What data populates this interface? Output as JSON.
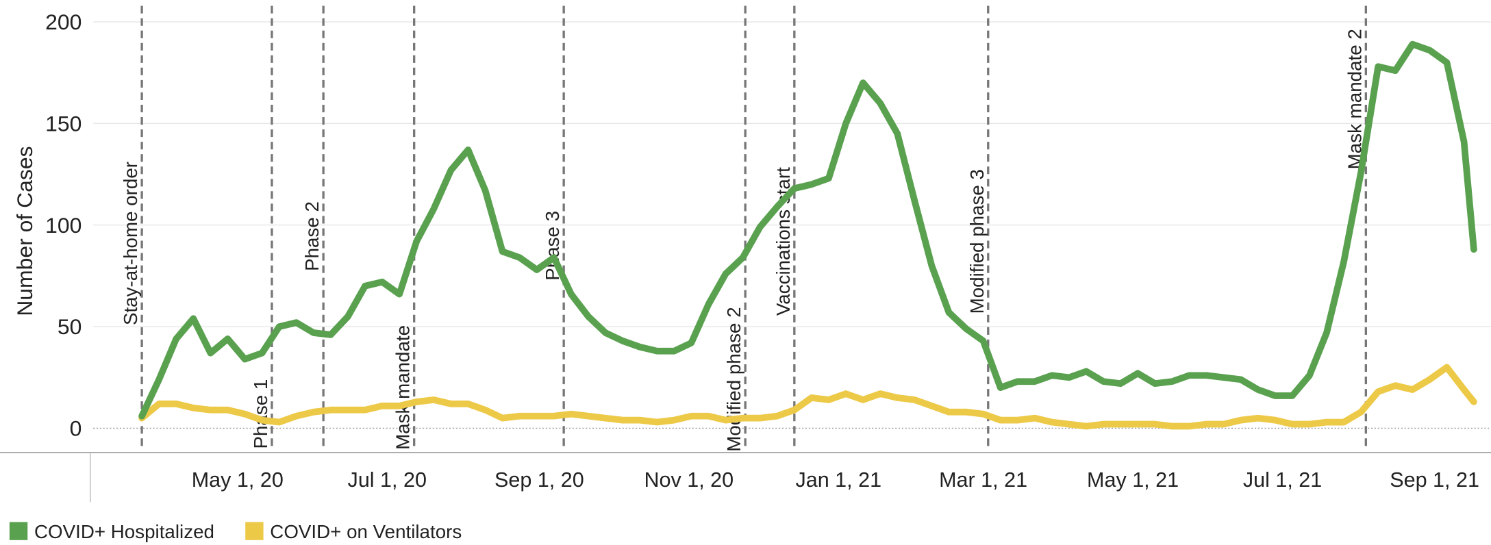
{
  "chart_data": {
    "type": "line",
    "y_label": "Number of Cases",
    "x": [
      "2020-03-23",
      "2020-03-30",
      "2020-04-06",
      "2020-04-13",
      "2020-04-20",
      "2020-04-27",
      "2020-05-04",
      "2020-05-11",
      "2020-05-18",
      "2020-05-25",
      "2020-06-01",
      "2020-06-08",
      "2020-06-15",
      "2020-06-22",
      "2020-06-29",
      "2020-07-06",
      "2020-07-13",
      "2020-07-20",
      "2020-07-27",
      "2020-08-03",
      "2020-08-10",
      "2020-08-17",
      "2020-08-24",
      "2020-08-31",
      "2020-09-07",
      "2020-09-14",
      "2020-09-21",
      "2020-09-28",
      "2020-10-05",
      "2020-10-12",
      "2020-10-19",
      "2020-10-26",
      "2020-11-02",
      "2020-11-09",
      "2020-11-16",
      "2020-11-23",
      "2020-11-30",
      "2020-12-07",
      "2020-12-14",
      "2020-12-21",
      "2020-12-28",
      "2021-01-04",
      "2021-01-11",
      "2021-01-18",
      "2021-01-25",
      "2021-02-01",
      "2021-02-08",
      "2021-02-15",
      "2021-02-22",
      "2021-03-01",
      "2021-03-08",
      "2021-03-15",
      "2021-03-22",
      "2021-03-29",
      "2021-04-05",
      "2021-04-12",
      "2021-04-19",
      "2021-04-26",
      "2021-05-03",
      "2021-05-10",
      "2021-05-17",
      "2021-05-24",
      "2021-05-31",
      "2021-06-07",
      "2021-06-14",
      "2021-06-21",
      "2021-06-28",
      "2021-07-05",
      "2021-07-12",
      "2021-07-19",
      "2021-07-26",
      "2021-08-02",
      "2021-08-09",
      "2021-08-16",
      "2021-08-23",
      "2021-08-30",
      "2021-09-06",
      "2021-09-13",
      "2021-09-17"
    ],
    "series": [
      {
        "name": "COVID+ Hospitalized",
        "color": "#59a14f",
        "values": [
          6,
          24,
          44,
          54,
          37,
          44,
          34,
          37,
          50,
          52,
          47,
          46,
          55,
          70,
          72,
          66,
          92,
          108,
          127,
          137,
          117,
          87,
          84,
          78,
          84,
          66,
          55,
          47,
          43,
          40,
          38,
          38,
          42,
          61,
          76,
          84,
          99,
          109,
          118,
          120,
          123,
          150,
          170,
          160,
          145,
          112,
          80,
          57,
          49,
          43,
          20,
          23,
          23,
          26,
          25,
          28,
          23,
          22,
          27,
          22,
          23,
          26,
          26,
          25,
          24,
          19,
          16,
          16,
          26,
          47,
          82,
          126,
          178,
          176,
          189,
          186,
          180,
          141,
          88
        ]
      },
      {
        "name": "COVID+ on Ventilators",
        "color": "#edc948",
        "values": [
          5,
          12,
          12,
          10,
          9,
          9,
          7,
          4,
          3,
          6,
          8,
          9,
          9,
          9,
          11,
          11,
          13,
          14,
          12,
          12,
          9,
          5,
          6,
          6,
          6,
          7,
          6,
          5,
          4,
          4,
          3,
          4,
          6,
          6,
          4,
          5,
          5,
          6,
          9,
          15,
          14,
          17,
          14,
          17,
          15,
          14,
          11,
          8,
          8,
          7,
          4,
          4,
          5,
          3,
          2,
          1,
          2,
          2,
          2,
          2,
          1,
          1,
          2,
          2,
          4,
          5,
          4,
          2,
          2,
          3,
          3,
          8,
          18,
          21,
          19,
          24,
          30,
          19,
          13
        ]
      }
    ],
    "annotations": [
      {
        "label": "Stay-at-home order",
        "x": "2020-03-23"
      },
      {
        "label": "Phase 1",
        "x": "2020-05-15"
      },
      {
        "label": "Phase 2",
        "x": "2020-06-05"
      },
      {
        "label": "Mask mandate",
        "x": "2020-07-12"
      },
      {
        "label": "Phase 3",
        "x": "2020-09-11"
      },
      {
        "label": "Modified phase 2",
        "x": "2020-11-24"
      },
      {
        "label": "Vaccinations start",
        "x": "2020-12-14"
      },
      {
        "label": "Modified phase 3",
        "x": "2021-03-03"
      },
      {
        "label": "Mask mandate 2",
        "x": "2021-08-04"
      }
    ],
    "xlim": [
      "2020-03-02",
      "2021-09-24"
    ],
    "xticks": [
      {
        "value": "2020-05-01",
        "label": "May 1, 20"
      },
      {
        "value": "2020-07-01",
        "label": "Jul 1, 20"
      },
      {
        "value": "2020-09-01",
        "label": "Sep 1, 20"
      },
      {
        "value": "2020-11-01",
        "label": "Nov 1, 20"
      },
      {
        "value": "2021-01-01",
        "label": "Jan 1, 21"
      },
      {
        "value": "2021-03-01",
        "label": "Mar 1, 21"
      },
      {
        "value": "2021-05-01",
        "label": "May 1, 21"
      },
      {
        "value": "2021-07-01",
        "label": "Jul 1, 21"
      },
      {
        "value": "2021-09-01",
        "label": "Sep 1, 21"
      }
    ],
    "ylim": [
      -12,
      206
    ],
    "yticks": [
      0,
      50,
      100,
      150,
      200
    ],
    "grid": true,
    "legend": "bottom-left"
  }
}
